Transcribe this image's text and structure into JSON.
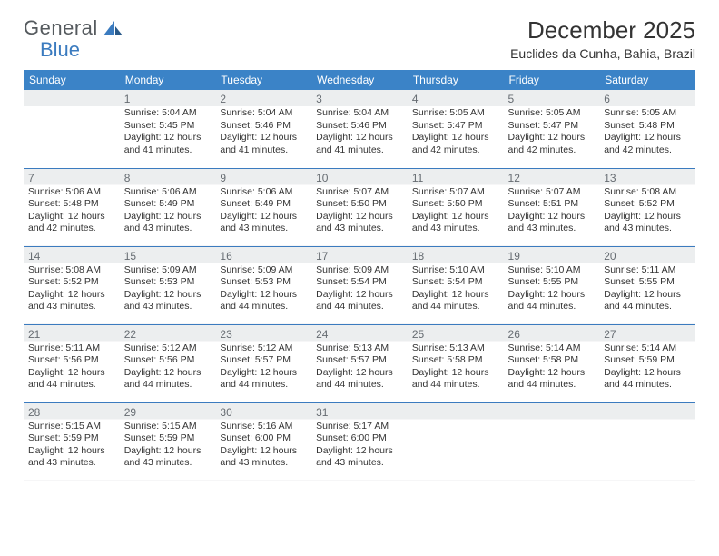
{
  "brand": {
    "name_a": "General",
    "name_b": "Blue"
  },
  "title": "December 2025",
  "location": "Euclides da Cunha, Bahia, Brazil",
  "colors": {
    "header_bg": "#3b83c7",
    "header_fg": "#ffffff",
    "rule": "#3b7bbf",
    "shade_bg": "#eceeef",
    "logo_gray": "#555a5e",
    "logo_blue": "#3b7bbf",
    "text": "#333333",
    "daynum": "#666c72"
  },
  "weekdays": [
    "Sunday",
    "Monday",
    "Tuesday",
    "Wednesday",
    "Thursday",
    "Friday",
    "Saturday"
  ],
  "layout": {
    "first_weekday_offset": 1,
    "days_in_month": 31
  },
  "days": {
    "1": {
      "sunrise": "5:04 AM",
      "sunset": "5:45 PM",
      "daylight": "12 hours and 41 minutes."
    },
    "2": {
      "sunrise": "5:04 AM",
      "sunset": "5:46 PM",
      "daylight": "12 hours and 41 minutes."
    },
    "3": {
      "sunrise": "5:04 AM",
      "sunset": "5:46 PM",
      "daylight": "12 hours and 41 minutes."
    },
    "4": {
      "sunrise": "5:05 AM",
      "sunset": "5:47 PM",
      "daylight": "12 hours and 42 minutes."
    },
    "5": {
      "sunrise": "5:05 AM",
      "sunset": "5:47 PM",
      "daylight": "12 hours and 42 minutes."
    },
    "6": {
      "sunrise": "5:05 AM",
      "sunset": "5:48 PM",
      "daylight": "12 hours and 42 minutes."
    },
    "7": {
      "sunrise": "5:06 AM",
      "sunset": "5:48 PM",
      "daylight": "12 hours and 42 minutes."
    },
    "8": {
      "sunrise": "5:06 AM",
      "sunset": "5:49 PM",
      "daylight": "12 hours and 43 minutes."
    },
    "9": {
      "sunrise": "5:06 AM",
      "sunset": "5:49 PM",
      "daylight": "12 hours and 43 minutes."
    },
    "10": {
      "sunrise": "5:07 AM",
      "sunset": "5:50 PM",
      "daylight": "12 hours and 43 minutes."
    },
    "11": {
      "sunrise": "5:07 AM",
      "sunset": "5:50 PM",
      "daylight": "12 hours and 43 minutes."
    },
    "12": {
      "sunrise": "5:07 AM",
      "sunset": "5:51 PM",
      "daylight": "12 hours and 43 minutes."
    },
    "13": {
      "sunrise": "5:08 AM",
      "sunset": "5:52 PM",
      "daylight": "12 hours and 43 minutes."
    },
    "14": {
      "sunrise": "5:08 AM",
      "sunset": "5:52 PM",
      "daylight": "12 hours and 43 minutes."
    },
    "15": {
      "sunrise": "5:09 AM",
      "sunset": "5:53 PM",
      "daylight": "12 hours and 43 minutes."
    },
    "16": {
      "sunrise": "5:09 AM",
      "sunset": "5:53 PM",
      "daylight": "12 hours and 44 minutes."
    },
    "17": {
      "sunrise": "5:09 AM",
      "sunset": "5:54 PM",
      "daylight": "12 hours and 44 minutes."
    },
    "18": {
      "sunrise": "5:10 AM",
      "sunset": "5:54 PM",
      "daylight": "12 hours and 44 minutes."
    },
    "19": {
      "sunrise": "5:10 AM",
      "sunset": "5:55 PM",
      "daylight": "12 hours and 44 minutes."
    },
    "20": {
      "sunrise": "5:11 AM",
      "sunset": "5:55 PM",
      "daylight": "12 hours and 44 minutes."
    },
    "21": {
      "sunrise": "5:11 AM",
      "sunset": "5:56 PM",
      "daylight": "12 hours and 44 minutes."
    },
    "22": {
      "sunrise": "5:12 AM",
      "sunset": "5:56 PM",
      "daylight": "12 hours and 44 minutes."
    },
    "23": {
      "sunrise": "5:12 AM",
      "sunset": "5:57 PM",
      "daylight": "12 hours and 44 minutes."
    },
    "24": {
      "sunrise": "5:13 AM",
      "sunset": "5:57 PM",
      "daylight": "12 hours and 44 minutes."
    },
    "25": {
      "sunrise": "5:13 AM",
      "sunset": "5:58 PM",
      "daylight": "12 hours and 44 minutes."
    },
    "26": {
      "sunrise": "5:14 AM",
      "sunset": "5:58 PM",
      "daylight": "12 hours and 44 minutes."
    },
    "27": {
      "sunrise": "5:14 AM",
      "sunset": "5:59 PM",
      "daylight": "12 hours and 44 minutes."
    },
    "28": {
      "sunrise": "5:15 AM",
      "sunset": "5:59 PM",
      "daylight": "12 hours and 43 minutes."
    },
    "29": {
      "sunrise": "5:15 AM",
      "sunset": "5:59 PM",
      "daylight": "12 hours and 43 minutes."
    },
    "30": {
      "sunrise": "5:16 AM",
      "sunset": "6:00 PM",
      "daylight": "12 hours and 43 minutes."
    },
    "31": {
      "sunrise": "5:17 AM",
      "sunset": "6:00 PM",
      "daylight": "12 hours and 43 minutes."
    }
  },
  "labels": {
    "sunrise": "Sunrise: ",
    "sunset": "Sunset: ",
    "daylight": "Daylight: "
  }
}
